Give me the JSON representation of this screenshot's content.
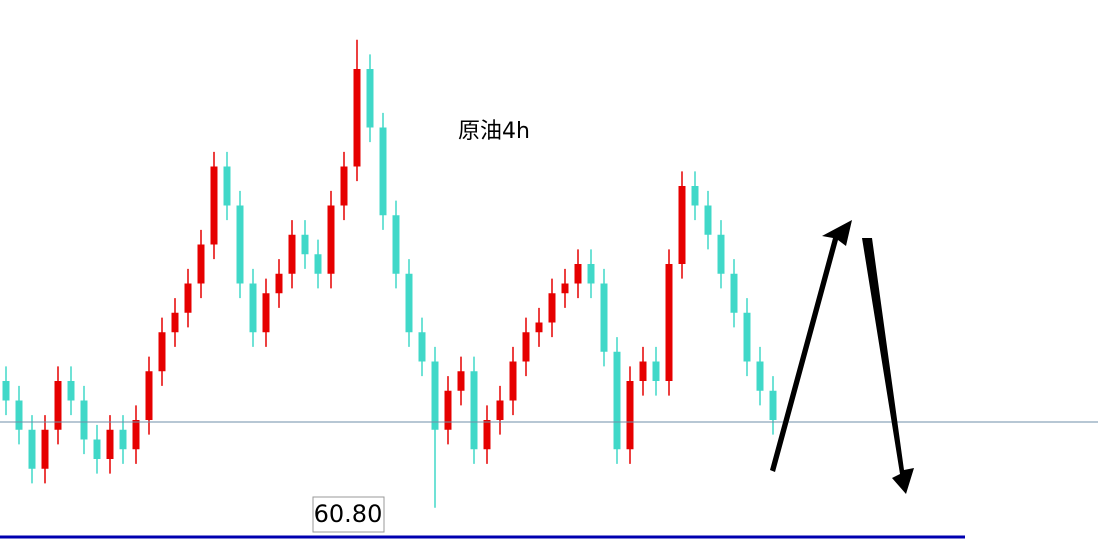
{
  "chart_data": {
    "type": "candlestick",
    "title": "原油4h",
    "ylim": [
      60.8,
      66.0
    ],
    "up_color": "#e60000",
    "down_color": "#40d8c8",
    "open": [
      62.4,
      62.2,
      61.9,
      61.5,
      61.9,
      62.4,
      62.2,
      61.8,
      61.6,
      61.9,
      61.7,
      62.0,
      62.5,
      62.9,
      63.1,
      63.4,
      63.8,
      64.6,
      64.2,
      63.4,
      62.9,
      63.3,
      63.5,
      63.9,
      63.7,
      63.5,
      64.2,
      64.6,
      65.6,
      65.0,
      64.1,
      63.5,
      62.9,
      62.6,
      61.9,
      62.3,
      62.5,
      61.7,
      62.0,
      62.2,
      62.6,
      62.9,
      63.0,
      63.3,
      63.4,
      63.6,
      63.4,
      62.7,
      61.7,
      62.4,
      62.6,
      62.4,
      63.6,
      64.4,
      64.2,
      63.9,
      63.5,
      63.1,
      62.6,
      62.3
    ],
    "high": [
      62.55,
      62.35,
      62.05,
      62.05,
      62.55,
      62.55,
      62.35,
      61.95,
      62.05,
      62.05,
      62.15,
      62.65,
      63.05,
      63.25,
      63.55,
      63.95,
      64.75,
      64.75,
      64.35,
      63.55,
      63.45,
      63.65,
      64.05,
      64.05,
      63.85,
      64.35,
      64.75,
      65.9,
      65.75,
      65.15,
      64.25,
      63.65,
      63.05,
      62.75,
      62.45,
      62.65,
      62.65,
      62.15,
      62.35,
      62.75,
      63.05,
      63.15,
      63.45,
      63.55,
      63.75,
      63.75,
      63.55,
      62.85,
      62.55,
      62.75,
      62.75,
      63.75,
      64.55,
      64.55,
      64.35,
      64.05,
      63.65,
      63.25,
      62.75,
      62.45
    ],
    "low": [
      62.05,
      61.75,
      61.35,
      61.35,
      61.75,
      62.05,
      61.65,
      61.45,
      61.45,
      61.55,
      61.55,
      61.85,
      62.35,
      62.75,
      62.95,
      63.25,
      63.65,
      64.05,
      63.25,
      62.75,
      62.75,
      63.15,
      63.35,
      63.55,
      63.35,
      63.35,
      64.05,
      64.45,
      64.85,
      63.95,
      63.35,
      62.75,
      62.45,
      61.1,
      61.75,
      62.15,
      61.55,
      61.55,
      61.85,
      62.05,
      62.45,
      62.75,
      62.85,
      63.15,
      63.25,
      63.25,
      62.55,
      61.55,
      61.55,
      62.25,
      62.25,
      62.25,
      63.45,
      64.05,
      63.75,
      63.35,
      62.95,
      62.45,
      62.15,
      61.85
    ],
    "close": [
      62.2,
      61.9,
      61.5,
      61.9,
      62.4,
      62.2,
      61.8,
      61.6,
      61.9,
      61.7,
      62.0,
      62.5,
      62.9,
      63.1,
      63.4,
      63.8,
      64.6,
      64.2,
      63.4,
      62.9,
      63.3,
      63.5,
      63.9,
      63.7,
      63.5,
      64.2,
      64.6,
      65.6,
      65.0,
      64.1,
      63.5,
      62.9,
      62.6,
      61.9,
      62.3,
      62.5,
      61.7,
      62.0,
      62.2,
      62.6,
      62.9,
      63.0,
      63.3,
      63.4,
      63.6,
      63.4,
      62.7,
      61.7,
      62.4,
      62.6,
      62.4,
      63.6,
      64.4,
      64.2,
      63.9,
      63.5,
      63.1,
      62.6,
      62.3,
      62.0
    ],
    "hlines": [
      {
        "value": 61.98,
        "color": "#6f8fa8"
      },
      {
        "value": 60.8,
        "color": "#0000b0"
      }
    ],
    "price_tag": {
      "value": 60.8,
      "label": "60.80"
    }
  }
}
